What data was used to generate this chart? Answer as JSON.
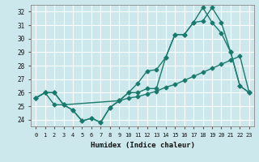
{
  "title": "",
  "xlabel": "Humidex (Indice chaleur)",
  "ylabel": "",
  "bg_color": "#cce8ec",
  "grid_color": "#ffffff",
  "line_color": "#1a7a6e",
  "xlim": [
    -0.5,
    23.5
  ],
  "ylim": [
    23.5,
    32.5
  ],
  "yticks": [
    24,
    25,
    26,
    27,
    28,
    29,
    30,
    31,
    32
  ],
  "xticks": [
    0,
    1,
    2,
    3,
    4,
    5,
    6,
    7,
    8,
    9,
    10,
    11,
    12,
    13,
    14,
    15,
    16,
    17,
    18,
    19,
    20,
    21,
    22,
    23
  ],
  "series1_x": [
    0,
    1,
    2,
    3,
    4,
    5,
    6,
    7,
    8,
    9,
    10,
    11,
    12,
    13,
    14,
    15,
    16,
    17,
    18,
    19,
    20,
    21,
    22,
    23
  ],
  "series1_y": [
    25.6,
    26.0,
    26.0,
    25.1,
    24.7,
    23.9,
    24.1,
    23.8,
    24.9,
    25.4,
    25.6,
    25.7,
    25.9,
    26.1,
    26.4,
    26.6,
    26.9,
    27.2,
    27.5,
    27.8,
    28.1,
    28.4,
    28.7,
    26.0
  ],
  "series2_x": [
    0,
    1,
    2,
    3,
    4,
    5,
    6,
    7,
    8,
    9,
    10,
    11,
    12,
    13,
    14,
    15,
    16,
    17,
    18,
    19,
    20,
    21,
    22,
    23
  ],
  "series2_y": [
    25.6,
    26.0,
    25.1,
    25.1,
    24.7,
    23.9,
    24.1,
    23.8,
    24.9,
    25.4,
    26.0,
    26.7,
    27.6,
    27.7,
    28.6,
    30.3,
    30.3,
    31.2,
    31.3,
    32.3,
    31.2,
    29.0,
    26.5,
    26.0
  ],
  "series3_x": [
    0,
    1,
    2,
    3,
    9,
    10,
    11,
    12,
    13,
    14,
    15,
    16,
    17,
    18,
    19,
    20,
    21,
    22,
    23
  ],
  "series3_y": [
    25.6,
    26.0,
    26.0,
    25.1,
    25.4,
    26.0,
    26.0,
    26.3,
    26.3,
    28.6,
    30.3,
    30.3,
    31.2,
    32.3,
    31.2,
    30.4,
    29.0,
    26.5,
    26.0
  ]
}
